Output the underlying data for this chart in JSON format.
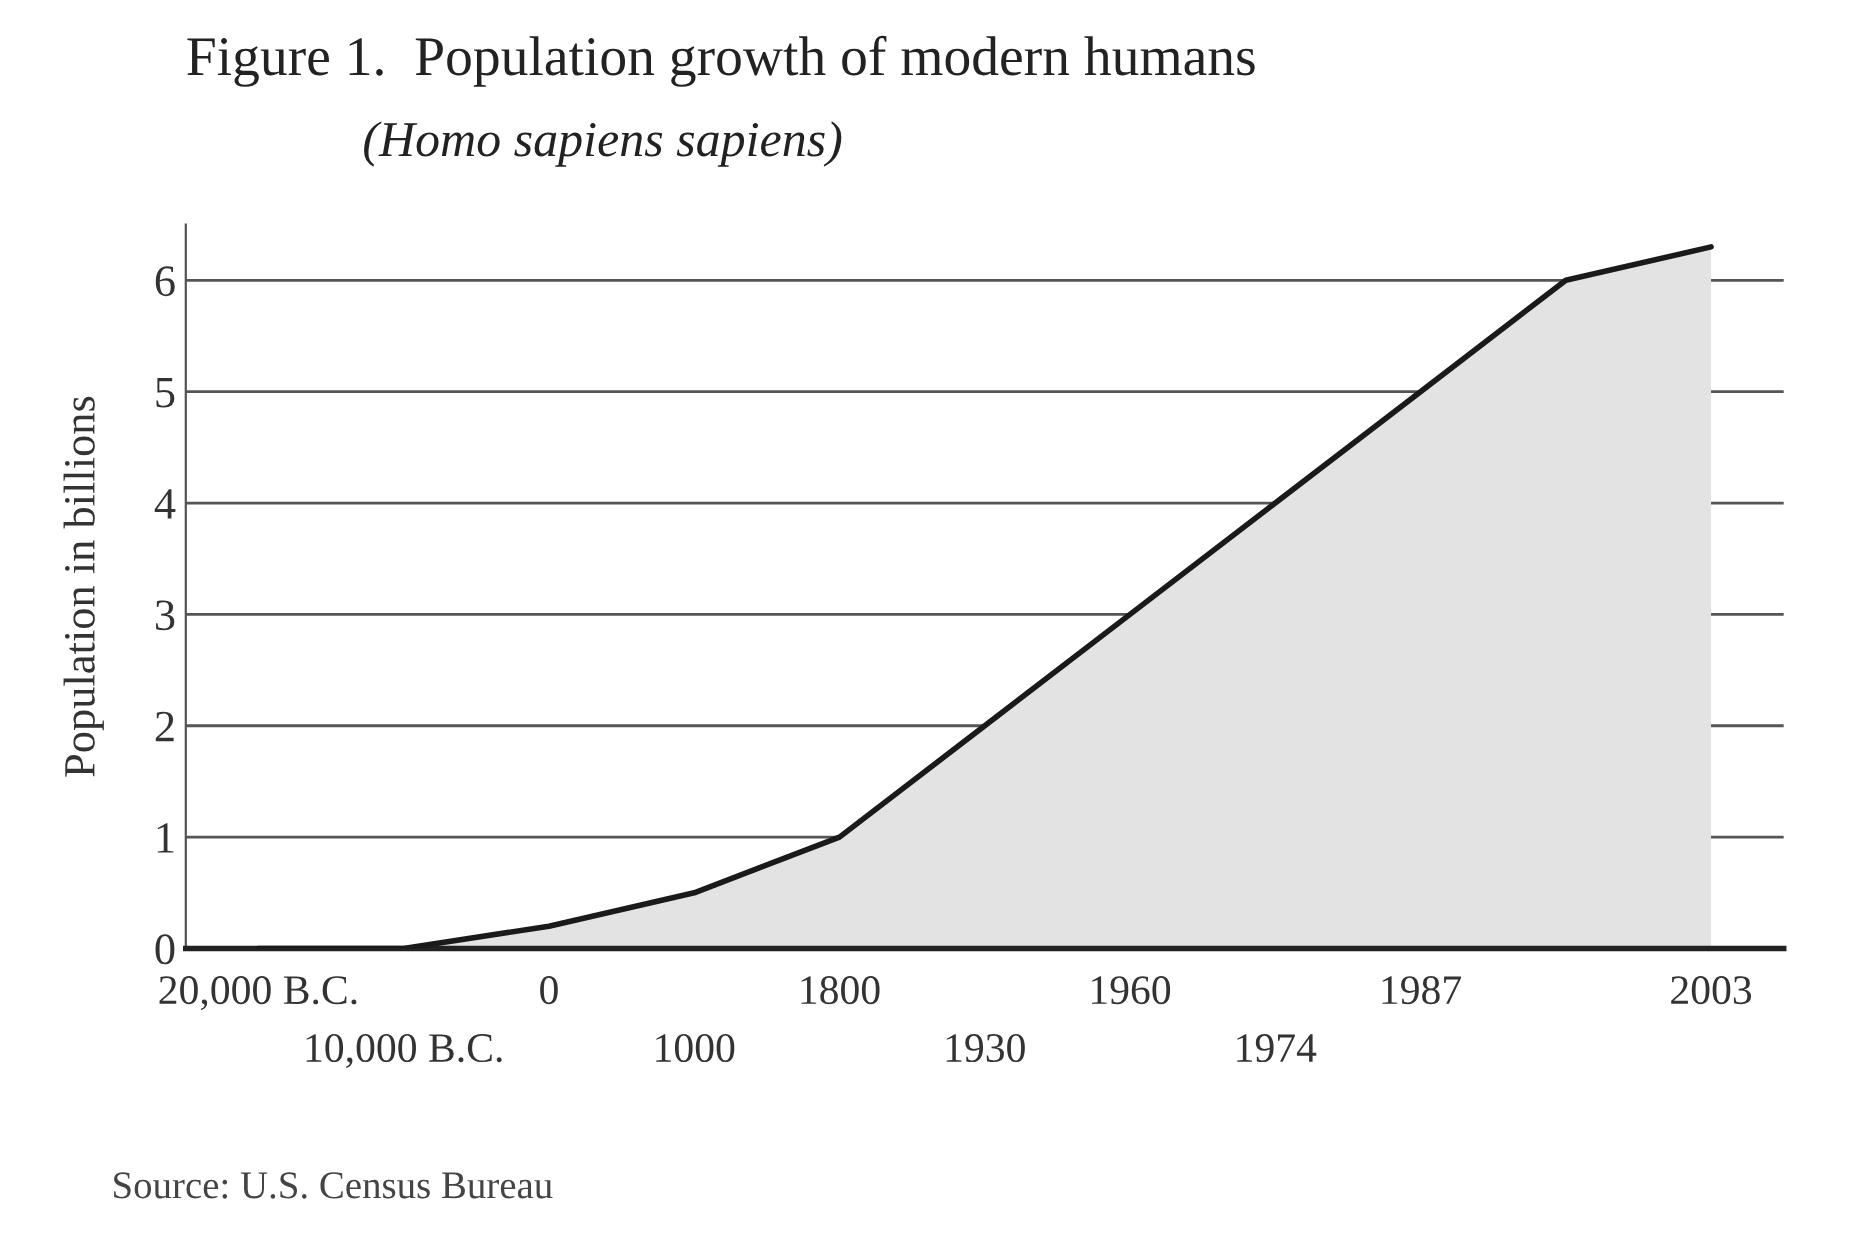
{
  "chart_data": {
    "type": "area",
    "title": "Figure 1.  Population growth of modern humans",
    "subtitle": "(Homo sapiens sapiens)",
    "ylabel": "Population in billions",
    "categories": [
      "20,000 B.C.",
      "10,000 B.C.",
      "0",
      "1000",
      "1800",
      "1930",
      "1960",
      "1974",
      "1987",
      null,
      "2003"
    ],
    "series": [
      {
        "color": "#1a1a1a",
        "values": [
          0,
          0,
          0.2,
          0.5,
          1.0,
          2.0,
          3.0,
          4.0,
          5.0,
          6.0,
          6.3
        ]
      }
    ],
    "ylim": [
      0,
      6.5
    ],
    "yticks": [
      0,
      1,
      2,
      3,
      4,
      5,
      6
    ],
    "grid": "y",
    "annotations": [
      "Source: U.S. Census Bureau"
    ]
  }
}
